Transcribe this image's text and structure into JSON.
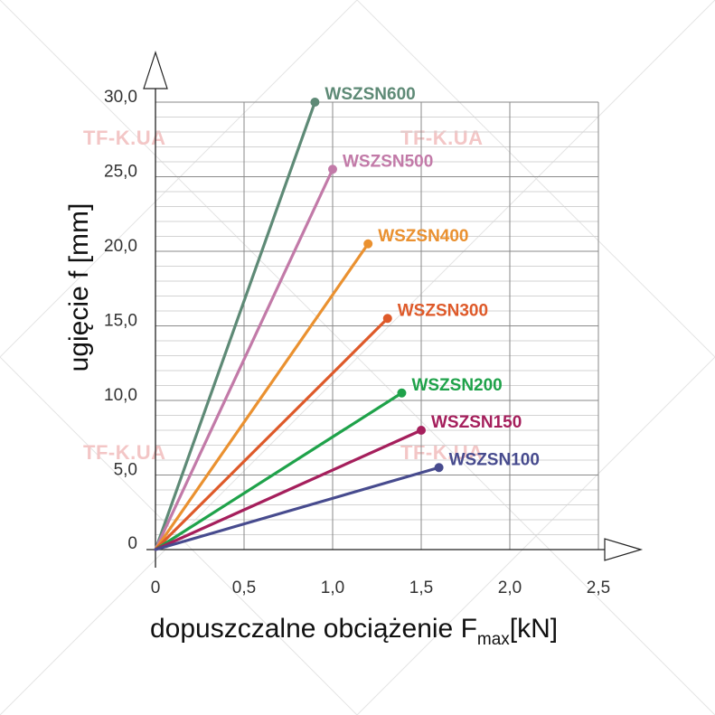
{
  "chart_data": {
    "type": "line",
    "watermark": "TF-K.UA",
    "xlabel": {
      "main": "dopuszczalne obciążenie F",
      "sub": "max",
      "unit": "[kN]"
    },
    "ylabel": "ugięcie f [mm]",
    "xlim": [
      0,
      2.5
    ],
    "ylim": [
      0,
      30
    ],
    "x_ticks": [
      {
        "value": 0,
        "label": "0"
      },
      {
        "value": 0.5,
        "label": "0,5"
      },
      {
        "value": 1.0,
        "label": "1,0"
      },
      {
        "value": 1.5,
        "label": "1,5"
      },
      {
        "value": 2.0,
        "label": "2,0"
      },
      {
        "value": 2.5,
        "label": "2,5"
      }
    ],
    "y_ticks": [
      {
        "value": 0,
        "label": "0"
      },
      {
        "value": 5,
        "label": "5,0"
      },
      {
        "value": 10,
        "label": "10,0"
      },
      {
        "value": 15,
        "label": "15,0"
      },
      {
        "value": 20,
        "label": "20,0"
      },
      {
        "value": 25,
        "label": "25,0"
      },
      {
        "value": 30,
        "label": "30,0"
      }
    ],
    "grid": true,
    "series": [
      {
        "name": "WSZSN600",
        "color": "#5e8a76",
        "x": [
          0,
          0.9
        ],
        "y": [
          0,
          30.0
        ]
      },
      {
        "name": "WSZSN500",
        "color": "#c27aa8",
        "x": [
          0,
          1.0
        ],
        "y": [
          0,
          25.5
        ]
      },
      {
        "name": "WSZSN400",
        "color": "#ea9130",
        "x": [
          0,
          1.2
        ],
        "y": [
          0,
          20.5
        ]
      },
      {
        "name": "WSZSN300",
        "color": "#de5a2a",
        "x": [
          0,
          1.31
        ],
        "y": [
          0,
          15.5
        ]
      },
      {
        "name": "WSZSN200",
        "color": "#1fa24a",
        "x": [
          0,
          1.39
        ],
        "y": [
          0,
          10.5
        ]
      },
      {
        "name": "WSZSN150",
        "color": "#a51f5c",
        "x": [
          0,
          1.5
        ],
        "y": [
          0,
          8.0
        ]
      },
      {
        "name": "WSZSN100",
        "color": "#474b8e",
        "x": [
          0,
          1.6
        ],
        "y": [
          0,
          5.5
        ]
      }
    ]
  }
}
